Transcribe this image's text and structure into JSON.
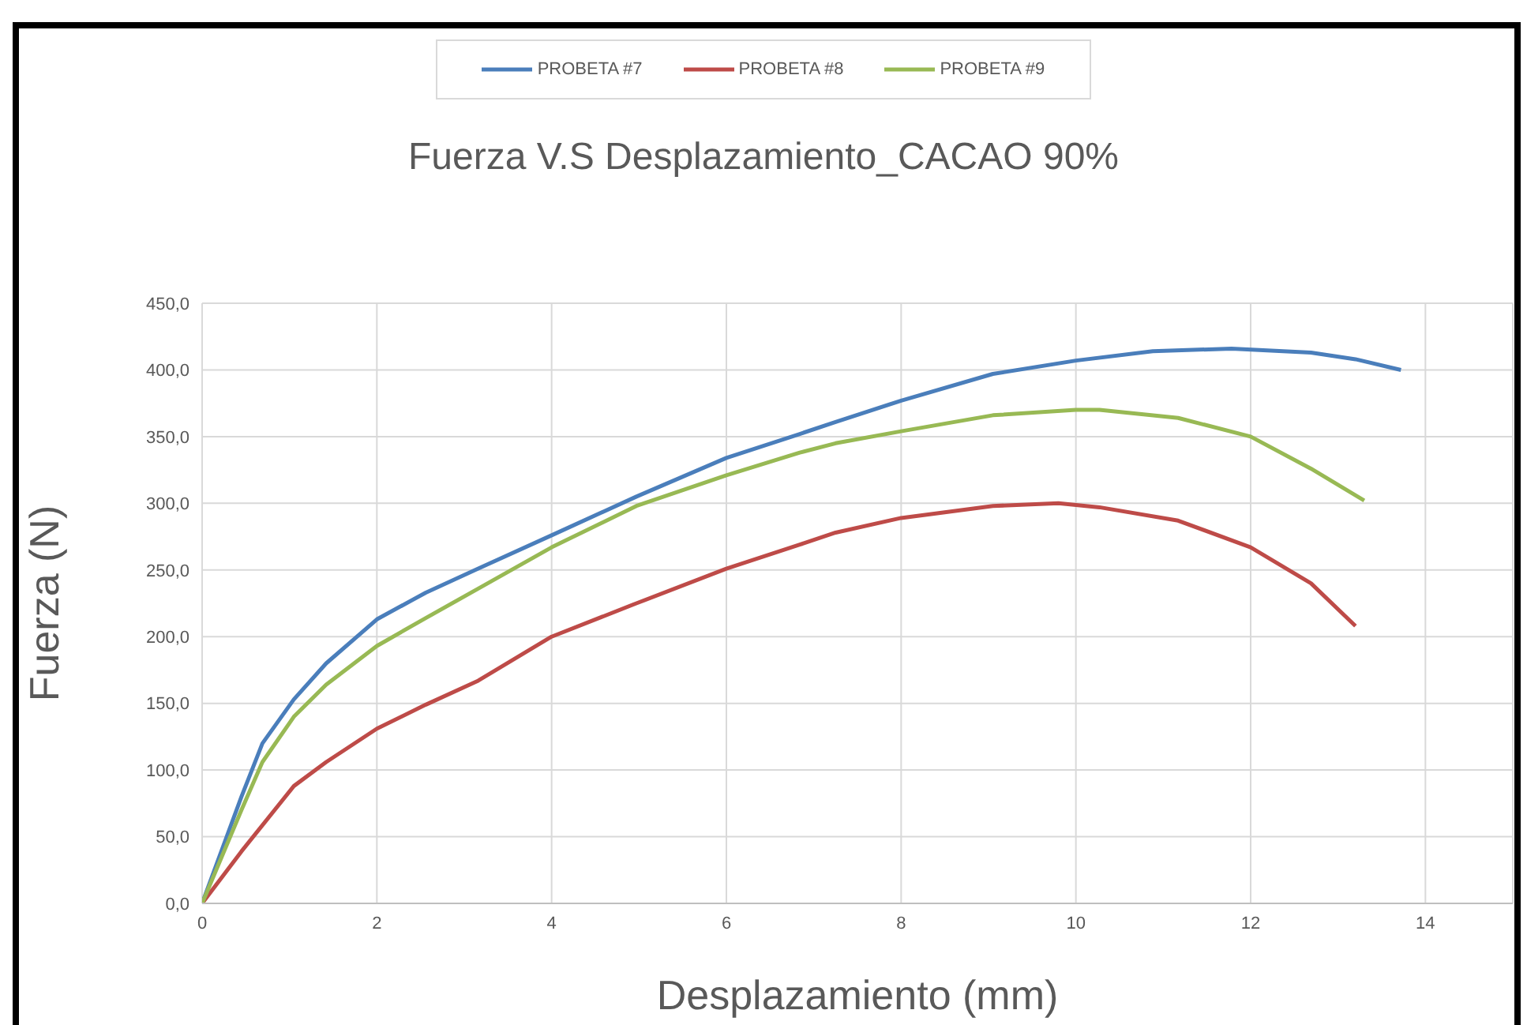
{
  "chart_data": {
    "type": "line",
    "title": "Fuerza V.S Desplazamiento_CACAO 90%",
    "xlabel": "Desplazamiento (mm)",
    "ylabel": "Fuerza  (N)",
    "xlim": [
      0,
      15
    ],
    "xticks": [
      0,
      2,
      4,
      6,
      8,
      10,
      12,
      14
    ],
    "ylim": [
      0,
      450
    ],
    "yticks": [
      {
        "value": 0,
        "label": "0,0"
      },
      {
        "value": 50,
        "label": "50,0"
      },
      {
        "value": 100,
        "label": "100,0"
      },
      {
        "value": 150,
        "label": "150,0"
      },
      {
        "value": 200,
        "label": "200,0"
      },
      {
        "value": 250,
        "label": "250,0"
      },
      {
        "value": 300,
        "label": "300,0"
      },
      {
        "value": 350,
        "label": "350,0"
      },
      {
        "value": 400,
        "label": "400,0"
      },
      {
        "value": 450,
        "label": "450,0"
      }
    ],
    "grid": true,
    "legend": "top",
    "marker": "none",
    "line_style": "solid",
    "series": [
      {
        "name": "PROBETA #7",
        "color": "#4a7ebb",
        "x": [
          0,
          0.45,
          0.69,
          1.05,
          1.42,
          2,
          2.56,
          3.16,
          4,
          4.97,
          6,
          6.84,
          7.25,
          8,
          9.05,
          10,
          10.88,
          11.78,
          12.69,
          13.2,
          13.72
        ],
        "values": [
          0,
          80,
          120,
          153,
          180,
          213,
          233,
          251,
          276,
          305,
          334,
          352,
          361,
          377,
          397,
          407,
          414,
          416,
          413,
          408,
          400
        ]
      },
      {
        "name": "PROBETA #8",
        "color": "#be4b48",
        "x": [
          0,
          0.45,
          1.05,
          1.42,
          2,
          2.56,
          3.16,
          4,
          4.97,
          6,
          6.84,
          7.25,
          8,
          9.05,
          9.8,
          10.27,
          11.17,
          12,
          12.69,
          13.2
        ],
        "values": [
          0,
          39,
          88,
          106,
          131,
          149,
          167,
          200,
          225,
          251,
          269,
          278,
          289,
          298,
          300,
          297,
          287,
          267,
          240,
          208
        ]
      },
      {
        "name": "PROBETA #9",
        "color": "#98b954",
        "x": [
          0,
          0.45,
          0.69,
          1.05,
          1.42,
          2,
          2.56,
          3.16,
          4,
          4.97,
          6,
          6.84,
          7.25,
          8,
          9.05,
          10,
          10.27,
          11.17,
          12,
          12.69,
          13.3
        ],
        "values": [
          0,
          70,
          106,
          140,
          164,
          193,
          214,
          236,
          267,
          298,
          321,
          338,
          345,
          354,
          366,
          370,
          370,
          364,
          350,
          326,
          302
        ]
      }
    ]
  }
}
